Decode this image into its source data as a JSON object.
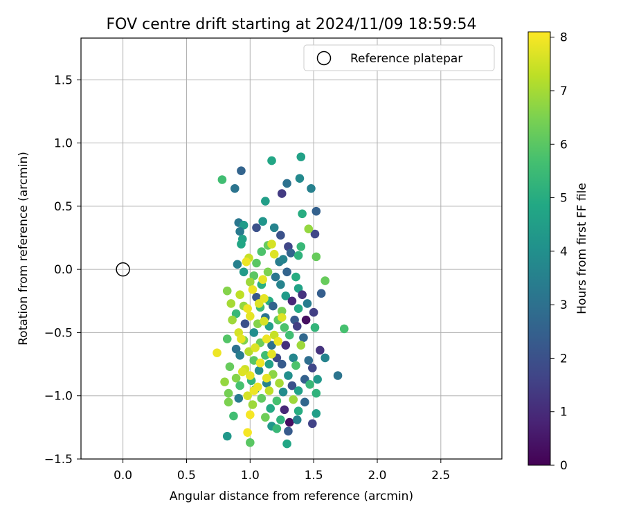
{
  "chart_data": {
    "type": "scatter",
    "title": "FOV centre drift starting at 2024/11/09 18:59:54",
    "xlabel": "Angular distance from reference (arcmin)",
    "ylabel": "Rotation from reference (arcmin)",
    "xlim": [
      -0.33,
      2.98
    ],
    "ylim": [
      -1.5,
      1.83
    ],
    "xticks": [
      0.0,
      0.5,
      1.0,
      1.5,
      2.0,
      2.5
    ],
    "xtick_labels": [
      "0.0",
      "0.5",
      "1.0",
      "1.5",
      "2.0",
      "2.5"
    ],
    "yticks": [
      -1.5,
      -1.0,
      -0.5,
      0.0,
      0.5,
      1.0,
      1.5
    ],
    "ytick_labels": [
      "−1.5",
      "−1.0",
      "−0.5",
      "0.0",
      "0.5",
      "1.0",
      "1.5"
    ],
    "grid": true,
    "legend": {
      "placement": "top-right",
      "entries": [
        {
          "label": "Reference platepar",
          "marker": "open-circle",
          "color": "#000000"
        }
      ]
    },
    "reference_point": {
      "x": 0.0,
      "y": 0.0,
      "label": "Reference platepar"
    },
    "colorbar": {
      "label": "Hours from first FF file",
      "colormap": "viridis",
      "range": [
        0,
        8.1
      ],
      "ticks": [
        0,
        1,
        2,
        3,
        4,
        5,
        6,
        7,
        8
      ],
      "tick_labels": [
        "0",
        "1",
        "2",
        "3",
        "4",
        "5",
        "6",
        "7",
        "8"
      ],
      "colors": [
        "#440154",
        "#482475",
        "#414487",
        "#355f8d",
        "#2a788e",
        "#21918c",
        "#22a884",
        "#44bf70",
        "#7ad151",
        "#bddf26",
        "#fde725"
      ]
    },
    "series": [
      {
        "value_name": "Hours from first FF file",
        "points": [
          [
            0.78,
            0.71,
            5.6
          ],
          [
            0.88,
            0.64,
            3.1
          ],
          [
            0.93,
            0.78,
            2.6
          ],
          [
            1.17,
            0.86,
            4.8
          ],
          [
            1.4,
            0.89,
            4.6
          ],
          [
            1.39,
            0.72,
            3.8
          ],
          [
            1.29,
            0.68,
            3.0
          ],
          [
            1.25,
            0.6,
            1.4
          ],
          [
            1.48,
            0.64,
            3.5
          ],
          [
            1.12,
            0.54,
            4.5
          ],
          [
            1.52,
            0.46,
            2.5
          ],
          [
            1.41,
            0.44,
            5.0
          ],
          [
            0.91,
            0.37,
            3.2
          ],
          [
            1.05,
            0.33,
            2.0
          ],
          [
            1.1,
            0.38,
            4.2
          ],
          [
            1.19,
            0.33,
            3.6
          ],
          [
            1.24,
            0.27,
            2.0
          ],
          [
            1.51,
            0.28,
            1.7
          ],
          [
            1.46,
            0.32,
            6.8
          ],
          [
            0.95,
            0.35,
            4.4
          ],
          [
            0.92,
            0.3,
            3.3
          ],
          [
            0.94,
            0.24,
            4.6
          ],
          [
            0.93,
            0.2,
            4.8
          ],
          [
            1.14,
            0.19,
            6.2
          ],
          [
            1.3,
            0.18,
            1.7
          ],
          [
            1.4,
            0.18,
            5.4
          ],
          [
            1.32,
            0.13,
            2.6
          ],
          [
            1.38,
            0.11,
            5.2
          ],
          [
            1.52,
            0.1,
            6.2
          ],
          [
            1.17,
            0.2,
            7.6
          ],
          [
            1.09,
            0.14,
            5.8
          ],
          [
            1.05,
            0.05,
            6.0
          ],
          [
            0.99,
            0.09,
            7.4
          ],
          [
            1.23,
            0.06,
            3.4
          ],
          [
            1.26,
            0.08,
            3.6
          ],
          [
            0.9,
            0.04,
            3.5
          ],
          [
            0.95,
            -0.02,
            4.4
          ],
          [
            1.03,
            -0.05,
            6.0
          ],
          [
            1.14,
            -0.02,
            6.5
          ],
          [
            1.2,
            -0.06,
            3.2
          ],
          [
            1.29,
            -0.02,
            2.6
          ],
          [
            1.36,
            -0.06,
            5.0
          ],
          [
            1.59,
            -0.09,
            6.2
          ],
          [
            1.0,
            -0.1,
            6.9
          ],
          [
            1.09,
            -0.12,
            5.1
          ],
          [
            1.24,
            -0.12,
            3.6
          ],
          [
            1.38,
            -0.15,
            4.7
          ],
          [
            1.41,
            -0.2,
            1.2
          ],
          [
            1.56,
            -0.19,
            2.4
          ],
          [
            0.82,
            -0.17,
            6.6
          ],
          [
            0.92,
            -0.2,
            7.3
          ],
          [
            1.05,
            -0.22,
            2.2
          ],
          [
            1.15,
            -0.25,
            5.0
          ],
          [
            1.28,
            -0.21,
            4.4
          ],
          [
            1.33,
            -0.25,
            0.9
          ],
          [
            1.45,
            -0.27,
            3.4
          ],
          [
            0.85,
            -0.27,
            7.0
          ],
          [
            0.95,
            -0.29,
            6.8
          ],
          [
            1.08,
            -0.3,
            5.5
          ],
          [
            1.18,
            -0.29,
            2.6
          ],
          [
            1.25,
            -0.33,
            6.4
          ],
          [
            1.38,
            -0.31,
            4.9
          ],
          [
            1.5,
            -0.34,
            1.5
          ],
          [
            0.89,
            -0.35,
            5.4
          ],
          [
            1.0,
            -0.37,
            7.8
          ],
          [
            1.12,
            -0.38,
            3.1
          ],
          [
            1.22,
            -0.4,
            6.1
          ],
          [
            1.35,
            -0.4,
            2.3
          ],
          [
            1.44,
            -0.4,
            0.3
          ],
          [
            0.86,
            -0.4,
            6.9
          ],
          [
            0.96,
            -0.43,
            2.0
          ],
          [
            1.06,
            -0.43,
            6.6
          ],
          [
            1.15,
            -0.45,
            4.5
          ],
          [
            1.27,
            -0.46,
            5.8
          ],
          [
            1.37,
            -0.45,
            1.5
          ],
          [
            1.51,
            -0.46,
            5.3
          ],
          [
            1.74,
            -0.47,
            5.7
          ],
          [
            0.91,
            -0.5,
            7.6
          ],
          [
            1.03,
            -0.5,
            4.0
          ],
          [
            1.19,
            -0.52,
            7.4
          ],
          [
            1.31,
            -0.52,
            5.6
          ],
          [
            1.42,
            -0.54,
            2.7
          ],
          [
            0.82,
            -0.55,
            5.9
          ],
          [
            0.95,
            -0.56,
            6.5
          ],
          [
            1.08,
            -0.58,
            6.3
          ],
          [
            1.17,
            -0.6,
            3.0
          ],
          [
            1.28,
            -0.6,
            1.1
          ],
          [
            1.4,
            -0.6,
            6.9
          ],
          [
            1.55,
            -0.64,
            1.2
          ],
          [
            0.89,
            -0.63,
            3.0
          ],
          [
            0.99,
            -0.65,
            7.2
          ],
          [
            1.12,
            -0.68,
            5.6
          ],
          [
            1.21,
            -0.7,
            1.8
          ],
          [
            1.34,
            -0.7,
            3.7
          ],
          [
            1.46,
            -0.72,
            2.9
          ],
          [
            1.59,
            -0.7,
            3.6
          ],
          [
            0.74,
            -0.66,
            7.9
          ],
          [
            0.92,
            -0.68,
            3.4
          ],
          [
            1.03,
            -0.72,
            6.0
          ],
          [
            1.15,
            -0.75,
            4.6
          ],
          [
            1.25,
            -0.75,
            2.3
          ],
          [
            1.36,
            -0.76,
            5.8
          ],
          [
            1.49,
            -0.78,
            1.7
          ],
          [
            0.84,
            -0.77,
            6.2
          ],
          [
            0.96,
            -0.79,
            7.5
          ],
          [
            1.07,
            -0.8,
            3.9
          ],
          [
            1.18,
            -0.83,
            6.7
          ],
          [
            1.3,
            -0.84,
            4.0
          ],
          [
            1.43,
            -0.87,
            2.5
          ],
          [
            1.53,
            -0.87,
            4.3
          ],
          [
            1.69,
            -0.84,
            3.1
          ],
          [
            0.89,
            -0.86,
            6.6
          ],
          [
            1.01,
            -0.88,
            5.3
          ],
          [
            1.13,
            -0.9,
            3.6
          ],
          [
            1.23,
            -0.9,
            7.0
          ],
          [
            1.33,
            -0.92,
            2.0
          ],
          [
            1.47,
            -0.91,
            5.4
          ],
          [
            0.8,
            -0.89,
            6.8
          ],
          [
            0.92,
            -0.92,
            5.7
          ],
          [
            1.04,
            -0.95,
            4.7
          ],
          [
            1.15,
            -0.96,
            7.3
          ],
          [
            1.26,
            -0.97,
            3.9
          ],
          [
            1.38,
            -0.96,
            4.6
          ],
          [
            1.52,
            -0.98,
            5.2
          ],
          [
            0.83,
            -0.98,
            6.4
          ],
          [
            0.98,
            -1.0,
            7.6
          ],
          [
            1.09,
            -1.02,
            6.1
          ],
          [
            1.21,
            -1.04,
            5.7
          ],
          [
            1.34,
            -1.03,
            6.9
          ],
          [
            1.43,
            -1.05,
            2.7
          ],
          [
            0.83,
            -1.05,
            6.5
          ],
          [
            0.91,
            -1.02,
            3.3
          ],
          [
            1.02,
            -1.07,
            6.9
          ],
          [
            1.16,
            -1.1,
            4.9
          ],
          [
            1.27,
            -1.11,
            0.9
          ],
          [
            1.38,
            -1.12,
            5.0
          ],
          [
            1.52,
            -1.14,
            4.5
          ],
          [
            0.87,
            -1.16,
            5.6
          ],
          [
            1.0,
            -1.15,
            8.0
          ],
          [
            1.12,
            -1.17,
            6.3
          ],
          [
            1.24,
            -1.19,
            5.2
          ],
          [
            1.31,
            -1.21,
            0.3
          ],
          [
            1.37,
            -1.19,
            3.5
          ],
          [
            1.49,
            -1.22,
            1.6
          ],
          [
            1.17,
            -1.24,
            4.3
          ],
          [
            1.21,
            -1.26,
            5.4
          ],
          [
            1.3,
            -1.28,
            2.3
          ],
          [
            0.98,
            -1.29,
            8.0
          ],
          [
            0.82,
            -1.32,
            4.3
          ],
          [
            1.0,
            -1.37,
            6.0
          ],
          [
            1.29,
            -1.38,
            4.8
          ],
          [
            0.97,
            0.06,
            7.9
          ],
          [
            1.02,
            -0.16,
            7.9
          ],
          [
            1.1,
            -0.08,
            7.8
          ],
          [
            1.07,
            -0.27,
            7.7
          ],
          [
            0.98,
            -0.31,
            7.9
          ],
          [
            1.13,
            -0.55,
            7.9
          ],
          [
            1.04,
            -0.62,
            7.7
          ],
          [
            1.08,
            -0.74,
            7.9
          ],
          [
            1.0,
            -0.84,
            7.8
          ],
          [
            1.06,
            -0.93,
            7.9
          ],
          [
            1.19,
            0.12,
            7.7
          ],
          [
            0.93,
            -0.55,
            7.8
          ],
          [
            1.11,
            -0.41,
            7.6
          ],
          [
            1.25,
            -0.38,
            7.7
          ],
          [
            1.17,
            -0.67,
            7.8
          ],
          [
            0.94,
            -0.81,
            7.7
          ],
          [
            1.13,
            -0.86,
            7.8
          ],
          [
            1.03,
            -0.96,
            7.9
          ],
          [
            1.22,
            -0.57,
            7.9
          ],
          [
            1.11,
            -0.23,
            7.8
          ]
        ]
      }
    ]
  }
}
